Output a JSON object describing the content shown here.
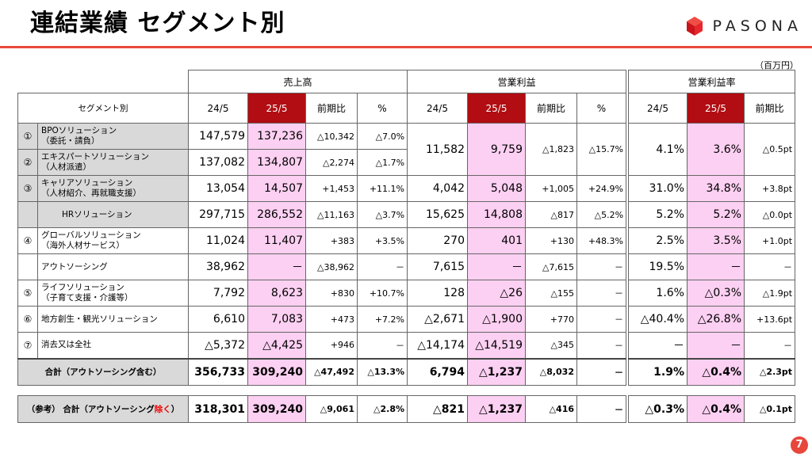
{
  "page": {
    "title": "連結業績 セグメント別",
    "logo_text": "PASONA",
    "unit": "（百万円）",
    "page_number": "7",
    "brand_red": "#e8473c"
  },
  "headers": {
    "segment": "セグメント別",
    "sales": "売上高",
    "op": "営業利益",
    "margin": "営業利益率",
    "y24": "24/5",
    "y25": "25/5",
    "yoy": "前期比",
    "pct": "%"
  },
  "rows": [
    {
      "no": "①",
      "name1": "BPOソリューション",
      "name2": "（委託・請負）",
      "s24": "147,579",
      "s25": "137,236",
      "sd": "△10,342",
      "sp": "△7.0%"
    },
    {
      "no": "②",
      "name1": "エキスパートソリューション",
      "name2": "（人材派遣）",
      "s24": "137,082",
      "s25": "134,807",
      "sd": "△2,274",
      "sp": "△1.7%"
    },
    {
      "no": "③",
      "name1": "キャリアソリューション",
      "name2": "（人材紹介、再就職支援）",
      "s24": "13,054",
      "s25": "14,507",
      "sd": "+1,453",
      "sp": "+11.1%",
      "o24": "4,042",
      "o25": "5,048",
      "od": "+1,005",
      "op": "+24.9%",
      "m24": "31.0%",
      "m25": "34.8%",
      "md": "+3.8pt"
    },
    {
      "no": "",
      "name1": "HRソリューション",
      "name2": "",
      "s24": "297,715",
      "s25": "286,552",
      "sd": "△11,163",
      "sp": "△3.7%",
      "o24": "15,625",
      "o25": "14,808",
      "od": "△817",
      "op": "△5.2%",
      "m24": "5.2%",
      "m25": "5.2%",
      "md": "△0.0pt"
    },
    {
      "no": "④",
      "name1": "グローバルソリューション",
      "name2": "（海外人材サービス）",
      "s24": "11,024",
      "s25": "11,407",
      "sd": "+383",
      "sp": "+3.5%",
      "o24": "270",
      "o25": "401",
      "od": "+130",
      "op": "+48.3%",
      "m24": "2.5%",
      "m25": "3.5%",
      "md": "+1.0pt"
    },
    {
      "no": "",
      "name1": "アウトソーシング",
      "name2": "",
      "s24": "38,962",
      "s25": "－",
      "sd": "△38,962",
      "sp": "－",
      "o24": "7,615",
      "o25": "－",
      "od": "△7,615",
      "op": "－",
      "m24": "19.5%",
      "m25": "－",
      "md": "－"
    },
    {
      "no": "⑤",
      "name1": "ライフソリューション",
      "name2": "（子育て支援・介護等）",
      "s24": "7,792",
      "s25": "8,623",
      "sd": "+830",
      "sp": "+10.7%",
      "o24": "128",
      "o25": "△26",
      "od": "△155",
      "op": "－",
      "m24": "1.6%",
      "m25": "△0.3%",
      "md": "△1.9pt"
    },
    {
      "no": "⑥",
      "name1": "地方創生・観光ソリューション",
      "name2": "",
      "s24": "6,610",
      "s25": "7,083",
      "sd": "+473",
      "sp": "+7.2%",
      "o24": "△2,671",
      "o25": "△1,900",
      "od": "+770",
      "op": "－",
      "m24": "△40.4%",
      "m25": "△26.8%",
      "md": "+13.6pt"
    },
    {
      "no": "⑦",
      "name1": "消去又は全社",
      "name2": "",
      "s24": "△5,372",
      "s25": "△4,425",
      "sd": "+946",
      "sp": "－",
      "o24": "△14,174",
      "o25": "△14,519",
      "od": "△345",
      "op": "－",
      "m24": "－",
      "m25": "－",
      "md": "－"
    }
  ],
  "merged12": {
    "o24": "11,582",
    "o25": "9,759",
    "od": "△1,823",
    "op": "△15.7%",
    "m24": "4.1%",
    "m25": "3.6%",
    "md": "△0.5pt"
  },
  "total": {
    "label": "合計（アウトソーシング含む）",
    "s24": "356,733",
    "s25": "309,240",
    "sd": "△47,492",
    "sp": "△13.3%",
    "o24": "6,794",
    "o25": "△1,237",
    "od": "△8,032",
    "op": "－",
    "m24": "1.9%",
    "m25": "△0.4%",
    "md": "△2.3pt"
  },
  "ref": {
    "label_pre": "（参考） 合計（アウトソーシング",
    "label_emph": "除く",
    "label_post": "）",
    "s24": "318,301",
    "s25": "309,240",
    "sd": "△9,061",
    "sp": "△2.8%",
    "o24": "△821",
    "o25": "△1,237",
    "od": "△416",
    "op": "－",
    "m24": "△0.3%",
    "m25": "△0.4%",
    "md": "△0.1pt"
  }
}
